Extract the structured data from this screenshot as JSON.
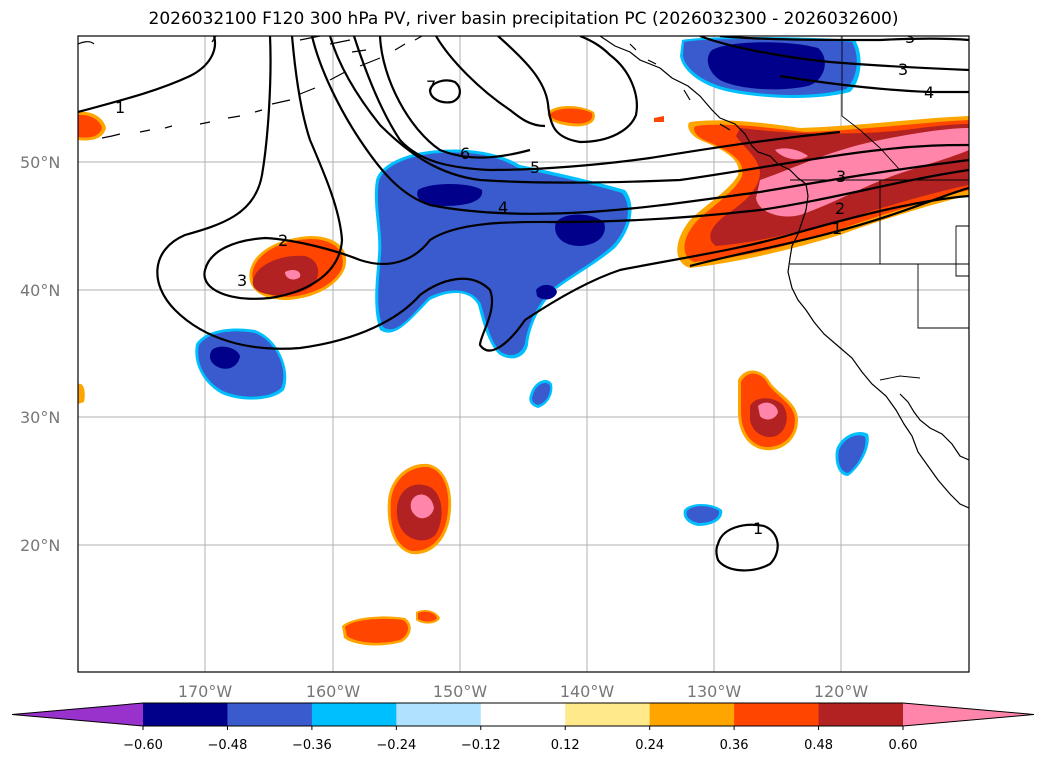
{
  "title": "2026032100 F120 300 hPa PV, river basin precipitation PC (2026032300 - 2026032600)",
  "lat_labels": [
    "50°N",
    "40°N",
    "30°N",
    "20°N"
  ],
  "lon_labels": [
    "170°W",
    "160°W",
    "150°W",
    "140°W",
    "130°W",
    "120°W"
  ],
  "colorbar": {
    "colors": [
      "#9932cc",
      "#00008b",
      "#3a5bcd",
      "#00bfff",
      "#b0e2ff",
      "#ffffff",
      "#ffe98a",
      "#ffa500",
      "#ff4500",
      "#b22222",
      "#ff86aa"
    ],
    "tick_labels": [
      "−0.60",
      "−0.48",
      "−0.36",
      "−0.24",
      "−0.12",
      "0.12",
      "0.24",
      "0.36",
      "0.48",
      "0.60"
    ]
  },
  "contour_labels": [
    "1",
    "2",
    "3",
    "4",
    "5",
    "6",
    "7",
    "3",
    "4",
    "3",
    "2",
    "1",
    "2",
    "3",
    "1"
  ]
}
